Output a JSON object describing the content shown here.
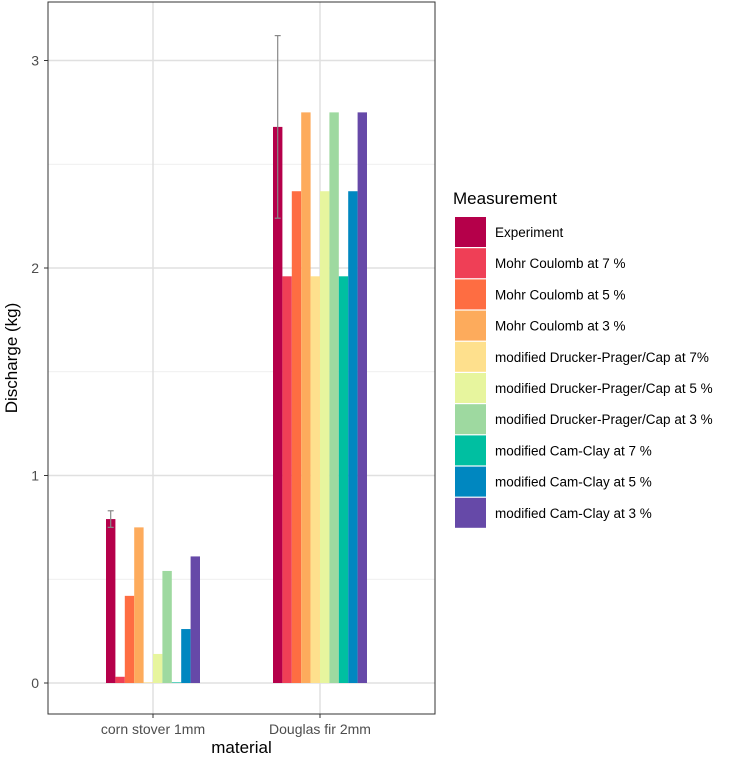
{
  "chart_data": {
    "type": "bar",
    "xlabel": "material",
    "ylabel": "Discharge (kg)",
    "ylim": [
      -0.13,
      3.2
    ],
    "yticks": [
      0,
      1,
      2,
      3
    ],
    "ytick_labels": [
      "0",
      "1",
      "2",
      "3"
    ],
    "grid": true,
    "legend_title": "Measurement",
    "legend_position": "right",
    "categories": [
      "corn stover 1mm",
      "Douglas fir 2mm"
    ],
    "series": [
      {
        "name": "Experiment",
        "color": "#B5004A",
        "values": [
          0.79,
          2.68
        ],
        "errors": [
          0.04,
          0.44
        ]
      },
      {
        "name": "Mohr Coulomb at 7 %",
        "color": "#EF3F56",
        "values": [
          0.03,
          1.96
        ]
      },
      {
        "name": "Mohr Coulomb at 5 %",
        "color": "#FE6D42",
        "values": [
          0.42,
          2.37
        ]
      },
      {
        "name": "Mohr Coulomb at 3 %",
        "color": "#FDAB5C",
        "values": [
          0.75,
          2.75
        ]
      },
      {
        "name": "modified Drucker-Prager/Cap at 7%",
        "color": "#FEE08D",
        "values": [
          0.0,
          1.96
        ]
      },
      {
        "name": "modified Drucker-Prager/Cap at 5 %",
        "color": "#E7F59E",
        "values": [
          0.14,
          2.37
        ]
      },
      {
        "name": "modified Drucker-Prager/Cap at 3 %",
        "color": "#9ED9A0",
        "values": [
          0.54,
          2.75
        ]
      },
      {
        "name": "modified Cam-Clay at 7 %",
        "color": "#00BFA1",
        "values": [
          0.0,
          1.96
        ]
      },
      {
        "name": "modified Cam-Clay at 5 %",
        "color": "#0087C0",
        "values": [
          0.26,
          2.37
        ]
      },
      {
        "name": "modified Cam-Clay at 3 %",
        "color": "#6649A8",
        "values": [
          0.61,
          2.75
        ]
      }
    ]
  }
}
